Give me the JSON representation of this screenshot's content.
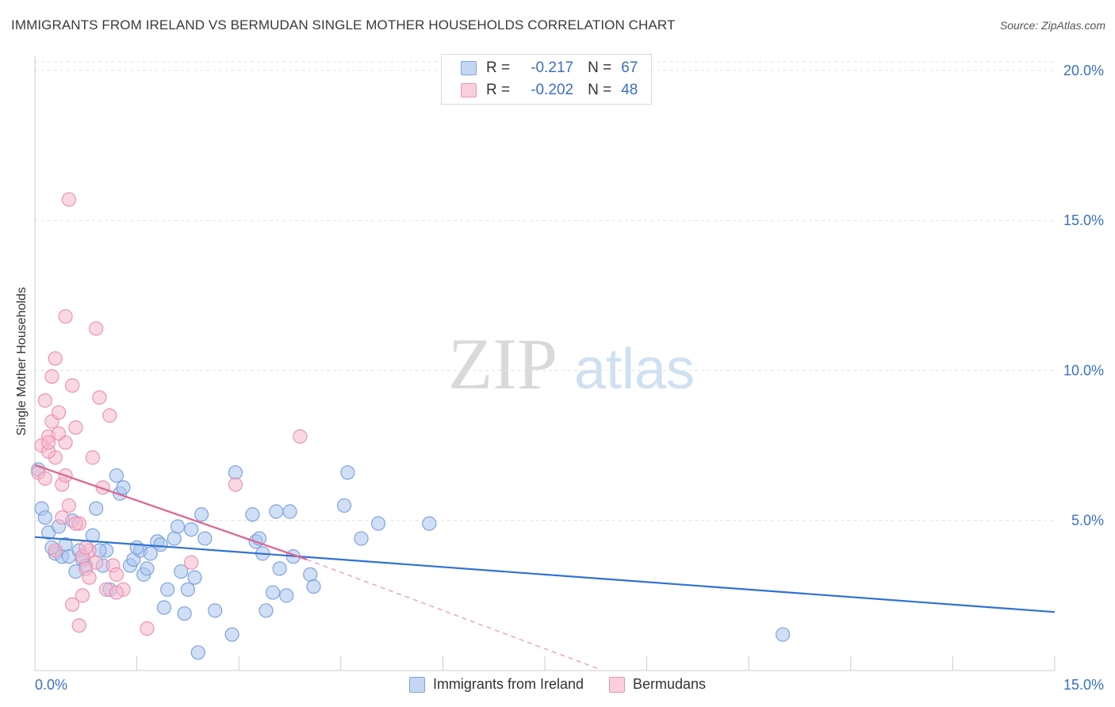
{
  "title": "IMMIGRANTS FROM IRELAND VS BERMUDAN SINGLE MOTHER HOUSEHOLDS CORRELATION CHART",
  "source": "Source: ZipAtlas.com",
  "watermark": {
    "zip": "ZIP",
    "atlas": "atlas"
  },
  "stats": [
    {
      "r_label": "R =",
      "r_value": "-0.217",
      "n_label": "N =",
      "n_value": "67"
    },
    {
      "r_label": "R =",
      "r_value": "-0.202",
      "n_label": "N =",
      "n_value": "48"
    }
  ],
  "legend": [
    "Immigrants from Ireland",
    "Bermudans"
  ],
  "colors": {
    "blue_fill": "#a9c4ef",
    "blue_stroke": "#7ea3de",
    "blue_line": "#2f72d2",
    "pink_fill": "#f6b8cc",
    "pink_stroke": "#ec93b1",
    "pink_line": "#e0628f",
    "axis_text": "#3a6fc4",
    "grid": "#e2e2e2"
  },
  "chart_data": {
    "type": "scatter",
    "title": "IMMIGRANTS FROM IRELAND VS BERMUDAN SINGLE MOTHER HOUSEHOLDS CORRELATION CHART",
    "xlabel": "",
    "ylabel": "Single Mother Households",
    "xlim": [
      0,
      15
    ],
    "ylim": [
      0,
      20.5
    ],
    "x_tick_labels": [
      "0.0%",
      "15.0%"
    ],
    "y_ticks": [
      5,
      10,
      15,
      20
    ],
    "y_tick_labels": [
      "5.0%",
      "10.0%",
      "15.0%",
      "20.0%"
    ],
    "grid": true,
    "legend_position": "bottom",
    "series": [
      {
        "name": "Immigrants from Ireland",
        "color": "#a9c4ef",
        "points": [
          [
            0.05,
            6.7
          ],
          [
            0.1,
            5.4
          ],
          [
            0.2,
            4.6
          ],
          [
            0.3,
            3.9
          ],
          [
            0.35,
            4.8
          ],
          [
            0.4,
            3.8
          ],
          [
            0.45,
            4.2
          ],
          [
            0.5,
            3.8
          ],
          [
            0.55,
            5.0
          ],
          [
            0.6,
            3.3
          ],
          [
            0.65,
            4.0
          ],
          [
            0.7,
            3.7
          ],
          [
            0.75,
            3.5
          ],
          [
            0.85,
            4.5
          ],
          [
            0.9,
            5.4
          ],
          [
            1.0,
            3.5
          ],
          [
            1.05,
            4.0
          ],
          [
            1.1,
            2.7
          ],
          [
            1.2,
            6.5
          ],
          [
            1.25,
            5.9
          ],
          [
            1.3,
            6.1
          ],
          [
            1.4,
            3.5
          ],
          [
            1.45,
            3.7
          ],
          [
            1.55,
            4.0
          ],
          [
            1.6,
            3.2
          ],
          [
            1.65,
            3.4
          ],
          [
            1.7,
            3.9
          ],
          [
            1.8,
            4.3
          ],
          [
            1.85,
            4.2
          ],
          [
            1.9,
            2.1
          ],
          [
            1.95,
            2.7
          ],
          [
            2.05,
            4.4
          ],
          [
            2.1,
            4.8
          ],
          [
            2.15,
            3.3
          ],
          [
            2.2,
            1.9
          ],
          [
            2.25,
            2.7
          ],
          [
            2.3,
            4.7
          ],
          [
            2.35,
            3.1
          ],
          [
            2.4,
            0.6
          ],
          [
            2.45,
            5.2
          ],
          [
            2.5,
            4.4
          ],
          [
            2.65,
            2.0
          ],
          [
            2.9,
            1.2
          ],
          [
            2.95,
            6.6
          ],
          [
            3.2,
            5.2
          ],
          [
            3.25,
            4.3
          ],
          [
            3.3,
            4.4
          ],
          [
            3.35,
            3.9
          ],
          [
            3.4,
            2.0
          ],
          [
            3.5,
            2.6
          ],
          [
            3.55,
            5.3
          ],
          [
            3.6,
            3.4
          ],
          [
            3.7,
            2.5
          ],
          [
            3.75,
            5.3
          ],
          [
            3.8,
            3.8
          ],
          [
            4.05,
            3.2
          ],
          [
            4.1,
            2.8
          ],
          [
            4.55,
            5.5
          ],
          [
            4.6,
            6.6
          ],
          [
            4.8,
            4.4
          ],
          [
            5.05,
            4.9
          ],
          [
            5.8,
            4.9
          ],
          [
            11.0,
            1.2
          ],
          [
            0.15,
            5.1
          ],
          [
            0.25,
            4.1
          ],
          [
            0.95,
            4.0
          ],
          [
            1.5,
            4.1
          ]
        ],
        "trend": [
          [
            0,
            4.45
          ],
          [
            15,
            1.95
          ]
        ]
      },
      {
        "name": "Bermudans",
        "color": "#f6b8cc",
        "points": [
          [
            0.05,
            6.6
          ],
          [
            0.1,
            7.5
          ],
          [
            0.15,
            6.4
          ],
          [
            0.2,
            7.8
          ],
          [
            0.25,
            8.3
          ],
          [
            0.25,
            9.8
          ],
          [
            0.3,
            7.1
          ],
          [
            0.35,
            8.6
          ],
          [
            0.4,
            6.2
          ],
          [
            0.45,
            7.6
          ],
          [
            0.45,
            11.8
          ],
          [
            0.5,
            15.7
          ],
          [
            0.55,
            9.5
          ],
          [
            0.6,
            8.1
          ],
          [
            0.65,
            4.9
          ],
          [
            0.7,
            2.5
          ],
          [
            0.75,
            3.4
          ],
          [
            0.8,
            4.0
          ],
          [
            0.85,
            7.1
          ],
          [
            0.9,
            11.4
          ],
          [
            0.95,
            9.1
          ],
          [
            1.0,
            6.1
          ],
          [
            1.05,
            2.7
          ],
          [
            1.1,
            8.5
          ],
          [
            1.15,
            3.5
          ],
          [
            1.2,
            3.2
          ],
          [
            0.3,
            10.4
          ],
          [
            0.35,
            7.9
          ],
          [
            0.4,
            5.1
          ],
          [
            0.5,
            5.5
          ],
          [
            0.55,
            2.2
          ],
          [
            0.65,
            1.5
          ],
          [
            0.7,
            3.8
          ],
          [
            0.8,
            3.1
          ],
          [
            1.3,
            2.7
          ],
          [
            1.65,
            1.4
          ],
          [
            2.3,
            3.6
          ],
          [
            2.95,
            6.2
          ],
          [
            3.9,
            7.8
          ],
          [
            0.2,
            7.3
          ],
          [
            0.3,
            4.0
          ],
          [
            0.45,
            6.5
          ],
          [
            0.6,
            4.9
          ],
          [
            0.75,
            4.1
          ],
          [
            0.9,
            3.6
          ],
          [
            1.2,
            2.6
          ],
          [
            0.15,
            9.0
          ],
          [
            0.2,
            7.6
          ]
        ],
        "trend": [
          [
            0,
            6.85
          ],
          [
            4.0,
            3.7
          ]
        ],
        "trend_extension": [
          [
            4.0,
            3.7
          ],
          [
            8.3,
            0.05
          ]
        ]
      }
    ]
  }
}
